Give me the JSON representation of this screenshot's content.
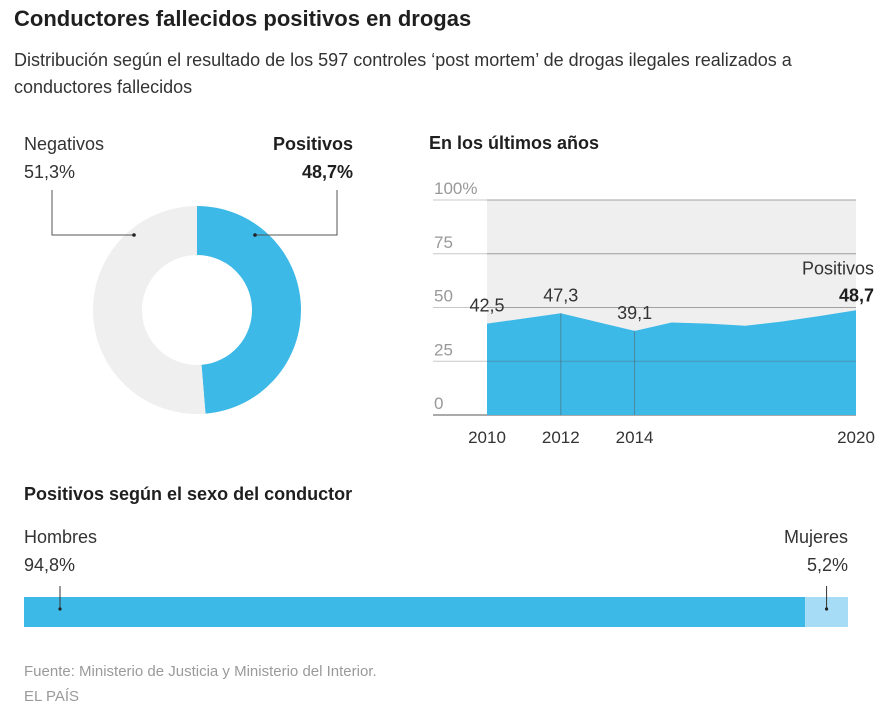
{
  "header": {
    "title": "Conductores fallecidos positivos en drogas",
    "subtitle": "Distribución según el resultado de los 597 controles ‘post mortem’ de drogas ilegales realizados a conductores fallecidos"
  },
  "colors": {
    "accent": "#3db9e8",
    "accent_light": "#a6dcf5",
    "neutral": "#efefef",
    "text": "#333333",
    "source": "#9a9a9a"
  },
  "chart_data": [
    {
      "type": "pie",
      "style": "donut",
      "slices": [
        {
          "name": "Negativos",
          "label": "Negativos",
          "value": 51.3,
          "value_label": "51,3%"
        },
        {
          "name": "Positivos",
          "label": "Positivos",
          "value": 48.7,
          "value_label": "48,7%"
        }
      ]
    },
    {
      "type": "area",
      "title": "En los últimos años",
      "y_ticks": [
        "100%",
        "75",
        "50",
        "25",
        "0"
      ],
      "ylim": [
        0,
        100
      ],
      "x_ticks": [
        "2010",
        "2012",
        "2014",
        "2020"
      ],
      "x": [
        2010,
        2011,
        2012,
        2013,
        2014,
        2015,
        2016,
        2017,
        2018,
        2019,
        2020
      ],
      "values": [
        42.5,
        44.9,
        47.3,
        43.2,
        39.1,
        43.0,
        42.5,
        41.5,
        43.5,
        46.0,
        48.7
      ],
      "labels": [
        {
          "year": 2010,
          "text": "42,5"
        },
        {
          "year": 2012,
          "text": "47,3"
        },
        {
          "year": 2014,
          "text": "39,1"
        }
      ],
      "series_label": "Positivos",
      "last_value_label": "48,7"
    },
    {
      "type": "bar",
      "orientation": "horizontal-stacked",
      "title": "Positivos según el sexo del conductor",
      "segments": [
        {
          "name": "Hombres",
          "value": 94.8,
          "value_label": "94,8%"
        },
        {
          "name": "Mujeres",
          "value": 5.2,
          "value_label": "5,2%"
        }
      ]
    }
  ],
  "footer": {
    "source": "Fuente: Ministerio de Justicia y Ministerio del Interior.",
    "brand": "EL PAÍS"
  }
}
